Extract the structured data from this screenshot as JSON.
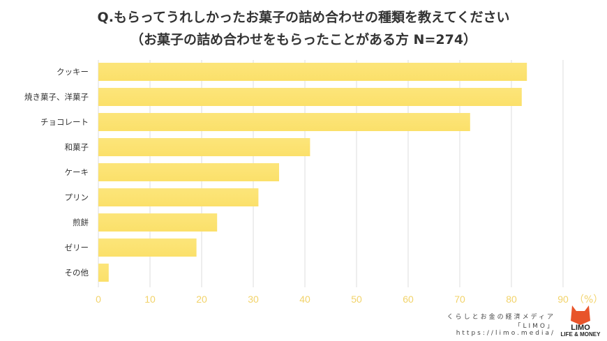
{
  "title_line1": "Q.もらってうれしかったお菓子の詰め合わせの種類を教えてください",
  "title_line2": "（お菓子の詰め合わせをもらったことがある方 N=274）",
  "chart_data": {
    "type": "bar",
    "orientation": "horizontal",
    "categories": [
      "クッキー",
      "焼き菓子、洋菓子",
      "チョコレート",
      "和菓子",
      "ケーキ",
      "プリン",
      "煎餅",
      "ゼリー",
      "その他"
    ],
    "values": [
      83,
      82,
      72,
      41,
      35,
      31,
      23,
      19,
      2
    ],
    "xlim": [
      0,
      90
    ],
    "xticks": [
      0,
      10,
      20,
      30,
      40,
      50,
      60,
      70,
      80,
      90
    ],
    "xunit": "（%）",
    "grid": true,
    "bar_color": "#fbe06a",
    "tick_color": "#f2d36a"
  },
  "footer": {
    "tagline": "くらしとお金の経済メディア",
    "brand": "「LIMO」",
    "url": "https://limo.media/",
    "logo_text": "LIMO",
    "logo_sub": "LIFE & MONEY"
  }
}
